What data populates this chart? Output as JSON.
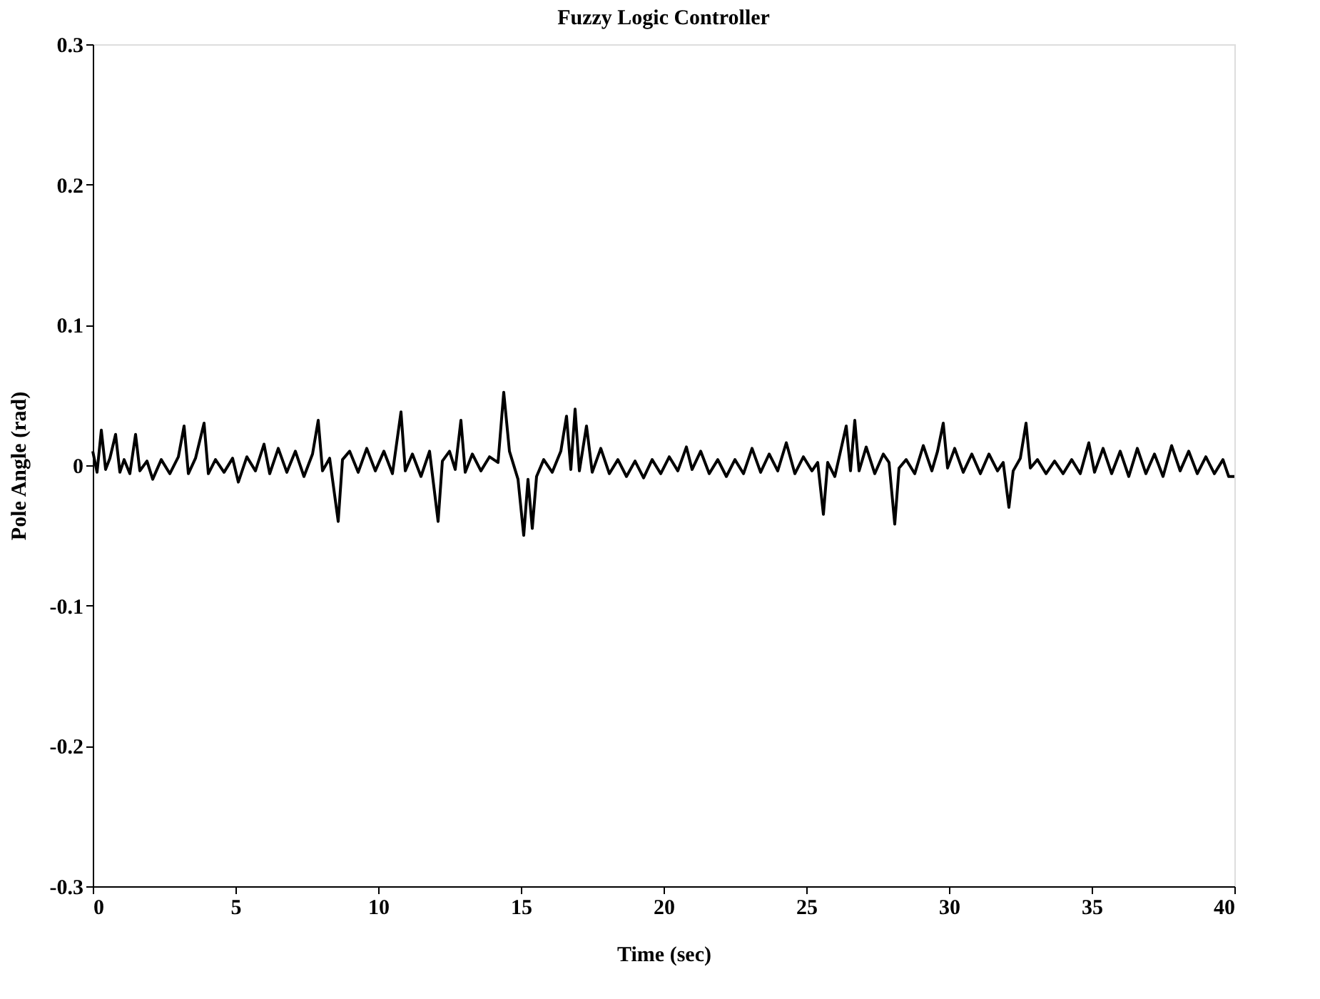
{
  "chart_data": {
    "type": "line",
    "title": "Fuzzy Logic Controller",
    "xlabel": "Time (sec)",
    "ylabel": "Pole Angle (rad)",
    "xlim": [
      0,
      40
    ],
    "xticks": [
      0,
      5,
      10,
      15,
      20,
      25,
      30,
      35,
      40
    ],
    "ylim": [
      -0.3,
      0.3
    ],
    "yticks": [
      -0.3,
      -0.2,
      -0.1,
      0,
      0.1,
      0.2,
      0.3
    ],
    "grid": false,
    "legend": false,
    "line_style": "solid",
    "marker": "none",
    "series": [
      {
        "color": "#000000",
        "x": [
          0,
          0.15,
          0.3,
          0.45,
          0.6,
          0.8,
          0.95,
          1.1,
          1.3,
          1.5,
          1.65,
          1.9,
          2.1,
          2.4,
          2.7,
          3.0,
          3.2,
          3.35,
          3.6,
          3.9,
          4.05,
          4.3,
          4.6,
          4.9,
          5.1,
          5.4,
          5.7,
          6.0,
          6.2,
          6.5,
          6.8,
          7.1,
          7.4,
          7.7,
          7.9,
          8.05,
          8.3,
          8.6,
          8.75,
          9.0,
          9.3,
          9.6,
          9.9,
          10.2,
          10.5,
          10.8,
          10.95,
          11.2,
          11.5,
          11.8,
          12.1,
          12.25,
          12.5,
          12.7,
          12.9,
          13.05,
          13.3,
          13.6,
          13.9,
          14.2,
          14.4,
          14.6,
          14.9,
          15.1,
          15.25,
          15.4,
          15.55,
          15.8,
          16.1,
          16.4,
          16.6,
          16.75,
          16.9,
          17.05,
          17.3,
          17.5,
          17.8,
          18.1,
          18.4,
          18.7,
          19.0,
          19.3,
          19.6,
          19.9,
          20.2,
          20.5,
          20.8,
          21.0,
          21.3,
          21.6,
          21.9,
          22.2,
          22.5,
          22.8,
          23.1,
          23.4,
          23.7,
          24.0,
          24.3,
          24.6,
          24.9,
          25.2,
          25.4,
          25.6,
          25.75,
          26.0,
          26.2,
          26.4,
          26.55,
          26.7,
          26.85,
          27.1,
          27.4,
          27.7,
          27.9,
          28.1,
          28.25,
          28.5,
          28.8,
          29.1,
          29.4,
          29.6,
          29.8,
          29.95,
          30.2,
          30.5,
          30.8,
          31.1,
          31.4,
          31.7,
          31.9,
          32.1,
          32.25,
          32.5,
          32.7,
          32.85,
          33.1,
          33.4,
          33.7,
          34.0,
          34.3,
          34.6,
          34.9,
          35.1,
          35.4,
          35.7,
          36.0,
          36.3,
          36.6,
          36.9,
          37.2,
          37.5,
          37.8,
          38.1,
          38.4,
          38.7,
          39.0,
          39.3,
          39.6,
          39.8,
          40
        ],
        "values": [
          0.01,
          -0.005,
          0.025,
          -0.003,
          0.005,
          0.022,
          -0.005,
          0.004,
          -0.006,
          0.022,
          -0.004,
          0.003,
          -0.01,
          0.004,
          -0.006,
          0.006,
          0.028,
          -0.006,
          0.005,
          0.03,
          -0.006,
          0.004,
          -0.005,
          0.005,
          -0.012,
          0.006,
          -0.004,
          0.015,
          -0.006,
          0.012,
          -0.005,
          0.01,
          -0.008,
          0.008,
          0.032,
          -0.004,
          0.005,
          -0.04,
          0.004,
          0.01,
          -0.005,
          0.012,
          -0.004,
          0.01,
          -0.006,
          0.038,
          -0.004,
          0.008,
          -0.008,
          0.01,
          -0.04,
          0.003,
          0.01,
          -0.003,
          0.032,
          -0.005,
          0.008,
          -0.004,
          0.006,
          0.002,
          0.052,
          0.01,
          -0.01,
          -0.05,
          -0.01,
          -0.045,
          -0.008,
          0.004,
          -0.005,
          0.01,
          0.035,
          -0.003,
          0.04,
          -0.004,
          0.028,
          -0.005,
          0.012,
          -0.006,
          0.004,
          -0.008,
          0.003,
          -0.009,
          0.004,
          -0.006,
          0.006,
          -0.004,
          0.013,
          -0.003,
          0.01,
          -0.006,
          0.004,
          -0.008,
          0.004,
          -0.006,
          0.012,
          -0.005,
          0.008,
          -0.004,
          0.016,
          -0.006,
          0.006,
          -0.004,
          0.002,
          -0.035,
          0.002,
          -0.008,
          0.01,
          0.028,
          -0.004,
          0.032,
          -0.004,
          0.013,
          -0.006,
          0.008,
          0.002,
          -0.042,
          -0.002,
          0.004,
          -0.006,
          0.014,
          -0.004,
          0.01,
          0.03,
          -0.002,
          0.012,
          -0.005,
          0.008,
          -0.006,
          0.008,
          -0.004,
          0.002,
          -0.03,
          -0.004,
          0.005,
          0.03,
          -0.002,
          0.004,
          -0.006,
          0.003,
          -0.006,
          0.004,
          -0.006,
          0.016,
          -0.005,
          0.012,
          -0.006,
          0.01,
          -0.008,
          0.012,
          -0.006,
          0.008,
          -0.008,
          0.014,
          -0.004,
          0.01,
          -0.006,
          0.006,
          -0.006,
          0.004,
          -0.008,
          -0.008
        ]
      }
    ]
  }
}
